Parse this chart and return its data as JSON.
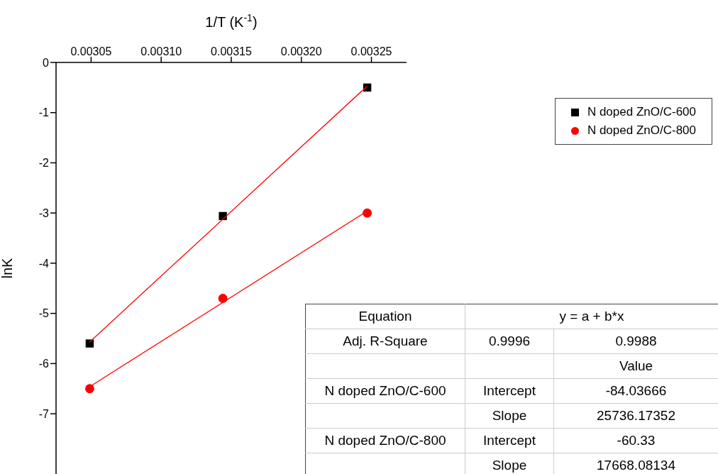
{
  "chart_data": {
    "type": "scatter",
    "xlabel": "1/T (K$^{-1}$)",
    "ylabel": "lnK",
    "xlim": [
      0.003025,
      0.003275
    ],
    "xticks": [
      0.00305,
      {
        "value": 0.0031,
        "label": "0.00310"
      },
      0.00315,
      {
        "value": 0.0032,
        "label": "0.00320"
      },
      0.00325
    ],
    "ylim": [
      -8.2,
      0
    ],
    "yticks": [
      0,
      -1,
      -2,
      -3,
      -4,
      -5,
      -6,
      -7
    ],
    "grid": false,
    "legend": "top right",
    "series": [
      {
        "name": "N doped ZnO/C-600",
        "color": "#000000",
        "marker": "square",
        "x": [
          0.003049,
          0.003144,
          0.003247
        ],
        "values": [
          -5.6,
          -3.06,
          -0.5
        ]
      },
      {
        "name": "N doped ZnO/C-800",
        "color": "#ff0000",
        "marker": "circle",
        "x": [
          0.003049,
          0.003144,
          0.003247
        ],
        "values": [
          -6.5,
          -4.7,
          -3.0
        ]
      },
      {
        "type": "line",
        "color": "#ff0000",
        "marker": "none",
        "x": [
          0.003049,
          0.003247
        ],
        "values": [
          -5.57,
          -0.47
        ]
      },
      {
        "type": "line",
        "color": "#ff0000",
        "marker": "none",
        "x": [
          0.003049,
          0.003247
        ],
        "values": [
          -6.46,
          -2.96
        ]
      }
    ],
    "annotations": [
      "Equation",
      "y = a + b*x",
      "Adj. R-Square",
      "0.9996",
      "0.9988",
      "Value",
      "N doped ZnO/C-600",
      "Intercept",
      "-84.03666",
      "Slope",
      "25736.17352",
      "N doped ZnO/C-800",
      "Intercept",
      "-60.33",
      "Slope",
      "17668.08134"
    ]
  }
}
